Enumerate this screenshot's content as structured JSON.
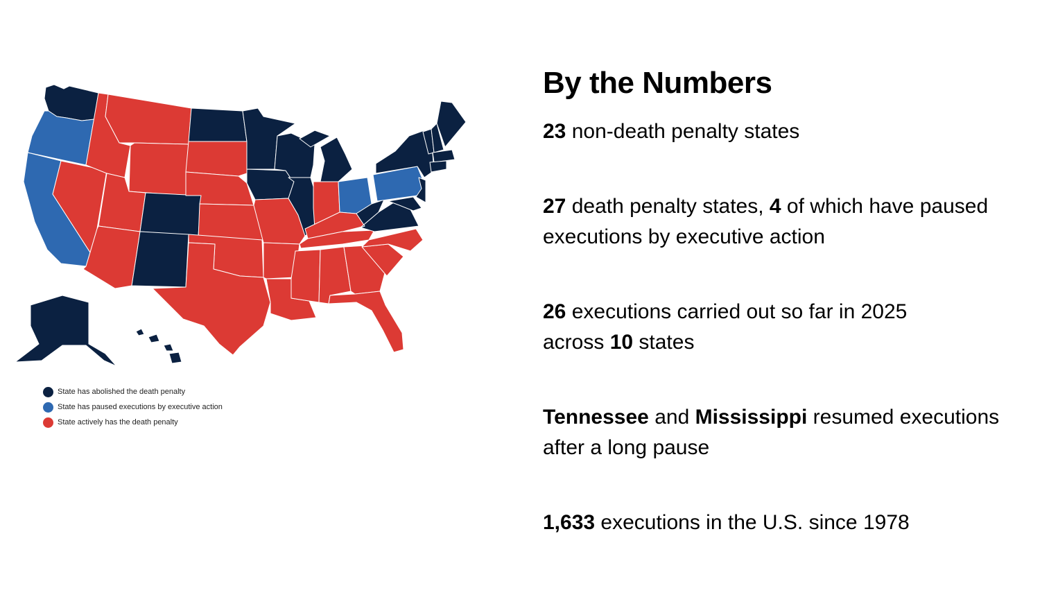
{
  "map": {
    "colors": {
      "abolished": "#0b2141",
      "paused": "#2e69b1",
      "active": "#dc3a34",
      "border": "#ffffff"
    },
    "legend": [
      {
        "key": "abolished",
        "label": "State has abolished the death penalty"
      },
      {
        "key": "paused",
        "label": "State has paused executions by executive action"
      },
      {
        "key": "active",
        "label": "State actively has the death penalty"
      }
    ]
  },
  "facts": {
    "title": "By the Numbers",
    "items": [
      {
        "n1": "23",
        "t1": " non-death penalty states"
      },
      {
        "n1": "27",
        "t1": " death penalty states, ",
        "n2": "4",
        "t2": " of which have paused",
        "t3": "executions by executive action"
      },
      {
        "n1": "26",
        "t1": " executions carried out so far in 2025",
        "t2": "across ",
        "n2": "10",
        "t3": " states"
      },
      {
        "n1": "Tennessee",
        "t1": " and ",
        "n2": "Mississippi",
        "t2": " resumed executions",
        "t3": "after a long pause"
      },
      {
        "n1": "1,633",
        "t1": " executions in the U.S. since 1978"
      }
    ]
  }
}
